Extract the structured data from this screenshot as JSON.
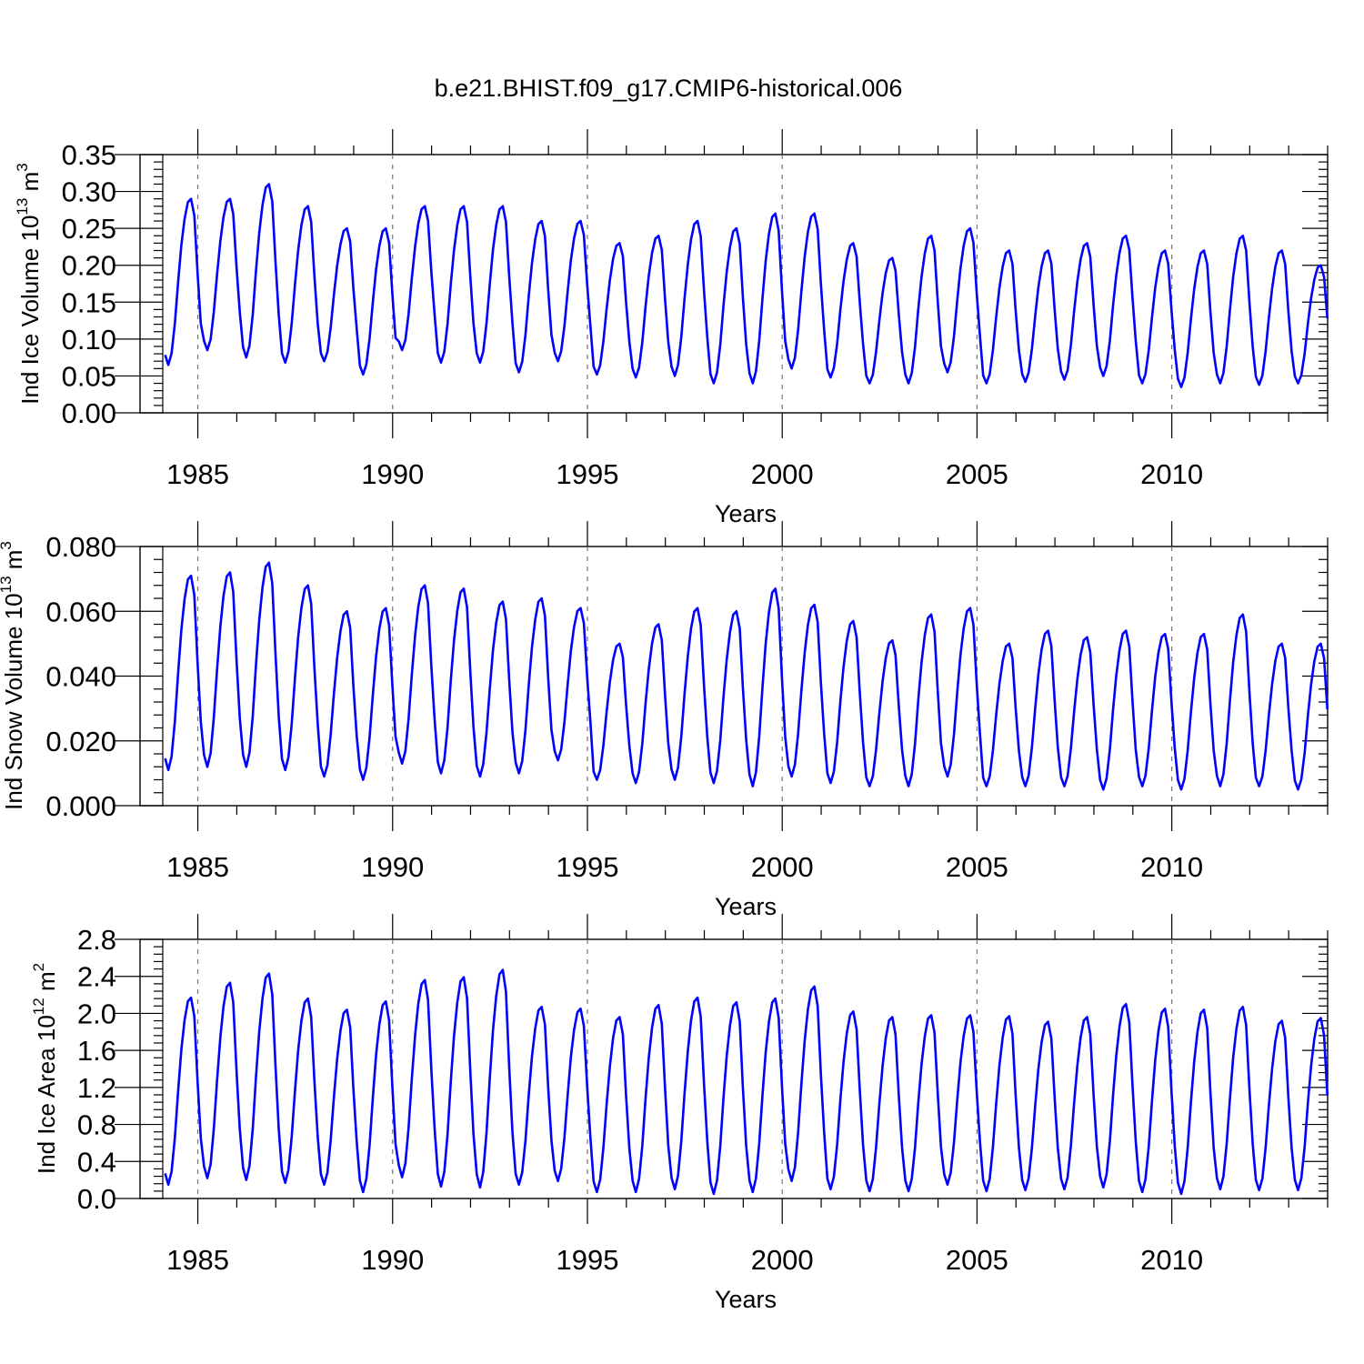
{
  "figure": {
    "title": "b.e21.BHIST.f09_g17.CMIP6-historical.006"
  },
  "chart_data": [
    {
      "type": "line",
      "ylabel_main": "Ind Ice Volume 10",
      "ylabel_exp": "13",
      "ylabel_unit": " m",
      "ylabel_unit_exp": "3",
      "xlabel": "Years",
      "xlim": [
        1984.1,
        2014.0
      ],
      "ylim": [
        0.0,
        0.35
      ],
      "x_ticks": [
        1985,
        1990,
        1995,
        2000,
        2005,
        2010
      ],
      "x_tick_labels": [
        "1985",
        "1990",
        "1995",
        "2000",
        "2005",
        "2010"
      ],
      "y_ticks": [
        0.0,
        0.05,
        0.1,
        0.15,
        0.2,
        0.25,
        0.3,
        0.35
      ],
      "y_tick_labels": [
        "0.00",
        "0.05",
        "0.10",
        "0.15",
        "0.20",
        "0.25",
        "0.30",
        "0.35"
      ],
      "grid": "vertical dashed at major x ticks",
      "series_color": "#0000ff",
      "series": [
        {
          "x_start": 1984.0,
          "x_step": 0.08333,
          "monthly_pattern": [
            0.08,
            0.07,
            0.08,
            0.12,
            0.17,
            0.22,
            0.26,
            0.29,
            0.28,
            0.2,
            0.14,
            0.1
          ],
          "annual_max": [
            0.29,
            0.29,
            0.31,
            0.28,
            0.25,
            0.25,
            0.28,
            0.28,
            0.28,
            0.26,
            0.26,
            0.23,
            0.24,
            0.26,
            0.25,
            0.27,
            0.27,
            0.23,
            0.21,
            0.24,
            0.25,
            0.22,
            0.22,
            0.23,
            0.24,
            0.22,
            0.22,
            0.24,
            0.22,
            0.2
          ],
          "annual_min": [
            0.065,
            0.085,
            0.075,
            0.068,
            0.07,
            0.052,
            0.085,
            0.068,
            0.068,
            0.055,
            0.07,
            0.052,
            0.048,
            0.05,
            0.04,
            0.04,
            0.06,
            0.048,
            0.04,
            0.04,
            0.055,
            0.04,
            0.042,
            0.045,
            0.05,
            0.04,
            0.035,
            0.04,
            0.038,
            0.04
          ],
          "end_value": 0.11
        }
      ]
    },
    {
      "type": "line",
      "ylabel_main": "Ind Snow Volume 10",
      "ylabel_exp": "13",
      "ylabel_unit": " m",
      "ylabel_unit_exp": "3",
      "xlabel": "Years",
      "xlim": [
        1984.1,
        2014.0
      ],
      "ylim": [
        0.0,
        0.08
      ],
      "x_ticks": [
        1985,
        1990,
        1995,
        2000,
        2005,
        2010
      ],
      "x_tick_labels": [
        "1985",
        "1990",
        "1995",
        "2000",
        "2005",
        "2010"
      ],
      "y_ticks": [
        0.0,
        0.02,
        0.04,
        0.06,
        0.08
      ],
      "y_tick_labels": [
        "0.000",
        "0.020",
        "0.040",
        "0.060",
        "0.080"
      ],
      "grid": "vertical dashed at major x ticks",
      "series_color": "#0000ff",
      "series": [
        {
          "x_start": 1984.0,
          "x_step": 0.08333,
          "annual_max": [
            0.071,
            0.072,
            0.075,
            0.068,
            0.06,
            0.061,
            0.068,
            0.067,
            0.063,
            0.064,
            0.061,
            0.05,
            0.056,
            0.061,
            0.06,
            0.067,
            0.062,
            0.057,
            0.051,
            0.059,
            0.061,
            0.05,
            0.054,
            0.052,
            0.054,
            0.053,
            0.053,
            0.059,
            0.05,
            0.05
          ],
          "annual_min": [
            0.011,
            0.012,
            0.012,
            0.011,
            0.009,
            0.008,
            0.013,
            0.01,
            0.009,
            0.01,
            0.014,
            0.008,
            0.007,
            0.008,
            0.007,
            0.006,
            0.009,
            0.007,
            0.006,
            0.006,
            0.009,
            0.006,
            0.006,
            0.006,
            0.005,
            0.006,
            0.005,
            0.006,
            0.006,
            0.005
          ],
          "end_value": 0.019
        }
      ]
    },
    {
      "type": "line",
      "ylabel_main": "Ind Ice Area 10",
      "ylabel_exp": "12",
      "ylabel_unit": " m",
      "ylabel_unit_exp": "2",
      "xlabel": "Years",
      "xlim": [
        1984.1,
        2014.0
      ],
      "ylim": [
        0.0,
        2.8
      ],
      "x_ticks": [
        1985,
        1990,
        1995,
        2000,
        2005,
        2010
      ],
      "x_tick_labels": [
        "1985",
        "1990",
        "1995",
        "2000",
        "2005",
        "2010"
      ],
      "y_ticks": [
        0.0,
        0.4,
        0.8,
        1.2,
        1.6,
        2.0,
        2.4,
        2.8
      ],
      "y_tick_labels": [
        "0.0",
        "0.4",
        "0.8",
        "1.2",
        "1.6",
        "2.0",
        "2.4",
        "2.8"
      ],
      "grid": "vertical dashed at major x ticks",
      "series_color": "#0000ff",
      "series": [
        {
          "x_start": 1984.0,
          "x_step": 0.08333,
          "annual_max": [
            2.17,
            2.33,
            2.43,
            2.16,
            2.04,
            2.13,
            2.36,
            2.39,
            2.47,
            2.07,
            2.05,
            1.96,
            2.09,
            2.17,
            2.12,
            2.16,
            2.29,
            2.02,
            1.96,
            1.98,
            1.98,
            1.97,
            1.91,
            1.96,
            2.1,
            2.05,
            2.04,
            2.07,
            1.92,
            1.95
          ],
          "annual_min": [
            0.15,
            0.22,
            0.2,
            0.17,
            0.15,
            0.07,
            0.23,
            0.13,
            0.12,
            0.15,
            0.19,
            0.07,
            0.07,
            0.1,
            0.05,
            0.07,
            0.19,
            0.1,
            0.08,
            0.08,
            0.15,
            0.08,
            0.09,
            0.1,
            0.12,
            0.07,
            0.05,
            0.1,
            0.09,
            0.09
          ],
          "end_value": 0.75
        }
      ]
    }
  ]
}
